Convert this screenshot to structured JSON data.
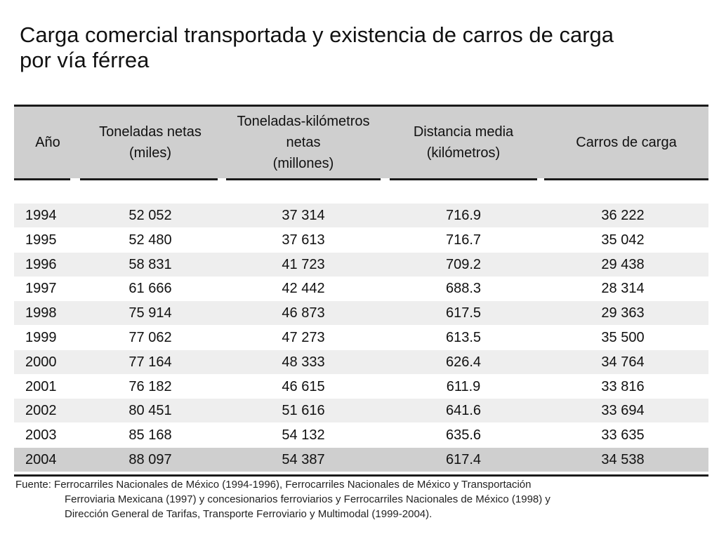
{
  "title_line1": "Carga comercial transportada y existencia de carros de carga",
  "title_line2": "por vía férrea",
  "chart_data": {
    "type": "table",
    "headers": [
      [
        "Año"
      ],
      [
        "Toneladas netas",
        "(miles)"
      ],
      [
        "Toneladas-kilómetros",
        "netas",
        "(millones)"
      ],
      [
        "Distancia media",
        "(kilómetros)"
      ],
      [
        "Carros de carga"
      ]
    ],
    "rows": [
      [
        "1994",
        "52 052",
        "37 314",
        "716.9",
        "36 222"
      ],
      [
        "1995",
        "52 480",
        "37 613",
        "716.7",
        "35 042"
      ],
      [
        "1996",
        "58 831",
        "41 723",
        "709.2",
        "29 438"
      ],
      [
        "1997",
        "61 666",
        "42 442",
        "688.3",
        "28 314"
      ],
      [
        "1998",
        "75 914",
        "46 873",
        "617.5",
        "29 363"
      ],
      [
        "1999",
        "77 062",
        "47 273",
        "613.5",
        "35 500"
      ],
      [
        "2000",
        "77 164",
        "48 333",
        "626.4",
        "34 764"
      ],
      [
        "2001",
        "76 182",
        "46 615",
        "611.9",
        "33 816"
      ],
      [
        "2002",
        "80 451",
        "51 616",
        "641.6",
        "33 694"
      ],
      [
        "2003",
        "85 168",
        "54 132",
        "635.6",
        "33 635"
      ],
      [
        "2004",
        "88 097",
        "54 387",
        "617.4",
        "34 538"
      ]
    ]
  },
  "source": {
    "line1": "Fuente: Ferrocarriles Nacionales de México (1994-1996), Ferrocarriles Nacionales de México y Transportación",
    "line2": "Ferroviaria Mexicana (1997) y concesionarios ferroviarios y Ferrocarriles Nacionales de México (1998) y",
    "line3": "Dirección General de Tarifas, Transporte Ferroviario y Multimodal (1999-2004)."
  },
  "colors": {
    "header_band": "#cfcfcf",
    "row_shade": "#eeeeee",
    "rule": "#1a1a1a"
  }
}
